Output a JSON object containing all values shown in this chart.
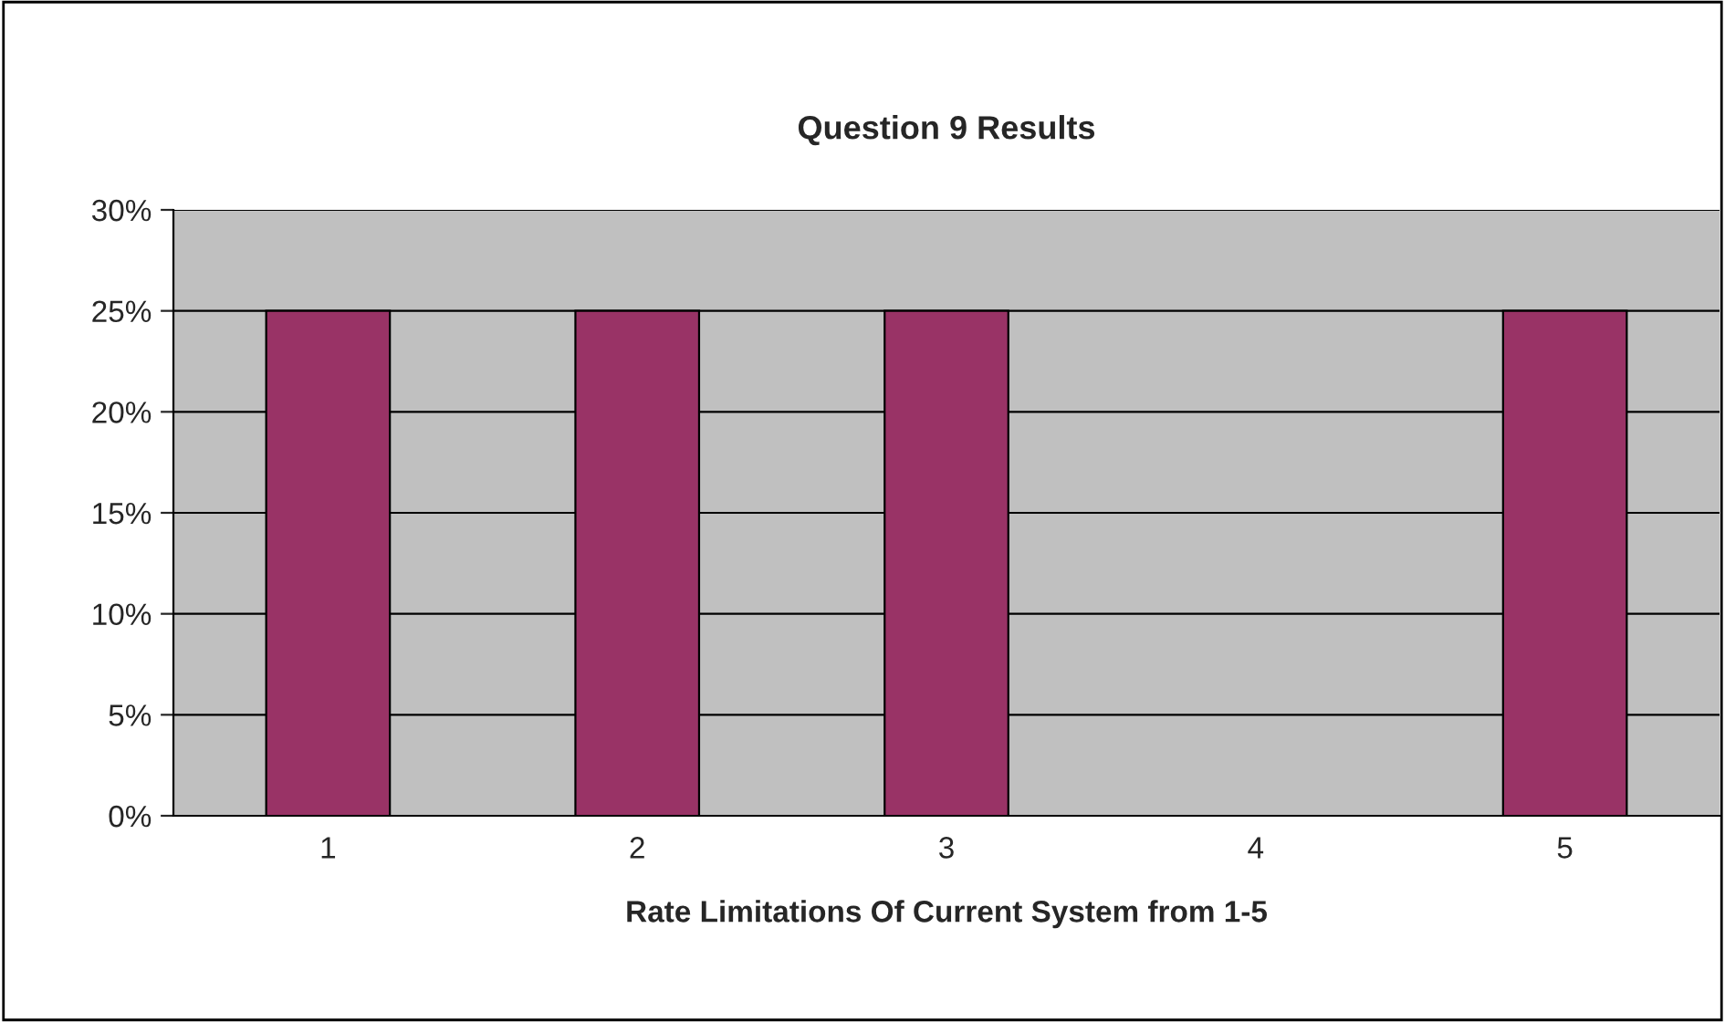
{
  "chart_data": {
    "type": "bar",
    "title": "Question 9 Results",
    "xlabel": "Rate Limitations Of Current System from 1-5",
    "categories": [
      "1",
      "2",
      "3",
      "4",
      "5"
    ],
    "values": [
      25,
      25,
      25,
      null,
      25
    ],
    "color": "#993366",
    "ylim": [
      0,
      30
    ],
    "yticks": [
      {
        "value": 0,
        "label": "0%"
      },
      {
        "value": 5,
        "label": "5%"
      },
      {
        "value": 10,
        "label": "10%"
      },
      {
        "value": 15,
        "label": "15%"
      },
      {
        "value": 20,
        "label": "20%"
      },
      {
        "value": 25,
        "label": "25%"
      },
      {
        "value": 30,
        "label": "30%"
      }
    ],
    "grid": "y",
    "legend": false
  }
}
